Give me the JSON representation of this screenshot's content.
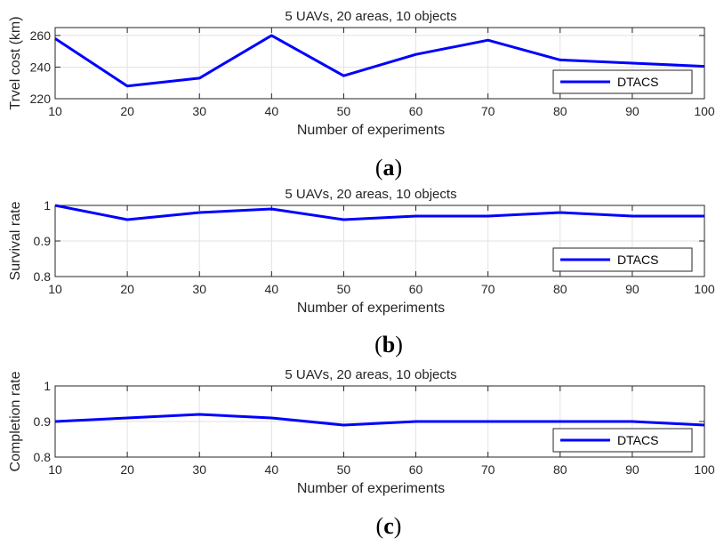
{
  "chart_data": [
    {
      "type": "line",
      "panel": "(a)",
      "panel_letter": "a",
      "title": "5 UAVs, 20 areas, 10 objects",
      "xlabel": "Number of experiments",
      "ylabel": "Trvel cost (km)",
      "x": [
        10,
        20,
        30,
        40,
        50,
        60,
        70,
        80,
        90,
        100
      ],
      "xlim": [
        10,
        100
      ],
      "ylim": [
        220,
        265
      ],
      "yticks": [
        220,
        240,
        260
      ],
      "xticks": [
        10,
        20,
        30,
        40,
        50,
        60,
        70,
        80,
        90,
        100
      ],
      "grid": true,
      "legend_position": "bottom-right",
      "series": [
        {
          "name": "DTACS",
          "color": "#0000ff",
          "values": [
            258,
            228,
            233,
            260,
            234.5,
            248,
            257,
            244.5,
            242.5,
            240.5
          ]
        }
      ]
    },
    {
      "type": "line",
      "panel": "(b)",
      "panel_letter": "b",
      "title": "5 UAVs, 20 areas, 10 objects",
      "xlabel": "Number of experiments",
      "ylabel": "Survival rate",
      "x": [
        10,
        20,
        30,
        40,
        50,
        60,
        70,
        80,
        90,
        100
      ],
      "xlim": [
        10,
        100
      ],
      "ylim": [
        0.8,
        1
      ],
      "yticks": [
        0.8,
        0.9,
        1
      ],
      "xticks": [
        10,
        20,
        30,
        40,
        50,
        60,
        70,
        80,
        90,
        100
      ],
      "grid": true,
      "legend_position": "bottom-right",
      "series": [
        {
          "name": "DTACS",
          "color": "#0000ff",
          "values": [
            1.0,
            0.96,
            0.98,
            0.99,
            0.96,
            0.97,
            0.97,
            0.98,
            0.97,
            0.97
          ]
        }
      ]
    },
    {
      "type": "line",
      "panel": "(c)",
      "panel_letter": "c",
      "title": "5 UAVs, 20 areas, 10 objects",
      "xlabel": "Number of experiments",
      "ylabel": "Completion rate",
      "x": [
        10,
        20,
        30,
        40,
        50,
        60,
        70,
        80,
        90,
        100
      ],
      "xlim": [
        10,
        100
      ],
      "ylim": [
        0.8,
        1
      ],
      "yticks": [
        0.8,
        0.9,
        1
      ],
      "xticks": [
        10,
        20,
        30,
        40,
        50,
        60,
        70,
        80,
        90,
        100
      ],
      "grid": true,
      "legend_position": "bottom-right",
      "series": [
        {
          "name": "DTACS",
          "color": "#0000ff",
          "values": [
            0.9,
            0.91,
            0.92,
            0.91,
            0.89,
            0.9,
            0.9,
            0.9,
            0.9,
            0.89
          ]
        }
      ]
    }
  ]
}
